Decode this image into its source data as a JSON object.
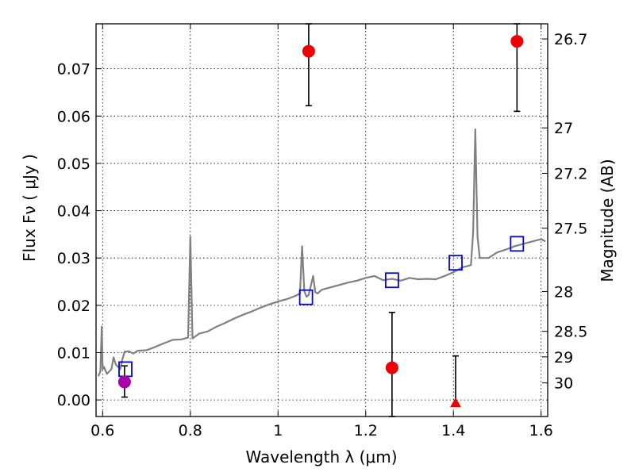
{
  "chart_data": {
    "type": "scatter",
    "xlabel": "Wavelength  λ (μm)",
    "ylabel": "Flux  Fν ( μJy )",
    "y2label": "Magnitude (AB)",
    "xlim": [
      0.585,
      1.615
    ],
    "ylim": [
      -0.0035,
      0.0795
    ],
    "grid": true,
    "x_ticks": [
      {
        "value": 0.6,
        "label": "0.6"
      },
      {
        "value": 0.8,
        "label": "0.8"
      },
      {
        "value": 1.0,
        "label": "1"
      },
      {
        "value": 1.2,
        "label": "1.2"
      },
      {
        "value": 1.4,
        "label": "1.4"
      },
      {
        "value": 1.6,
        "label": "1.6"
      }
    ],
    "y_ticks": [
      {
        "value": 0.0,
        "label": "0.00"
      },
      {
        "value": 0.01,
        "label": "0.01"
      },
      {
        "value": 0.02,
        "label": "0.02"
      },
      {
        "value": 0.03,
        "label": "0.03"
      },
      {
        "value": 0.04,
        "label": "0.04"
      },
      {
        "value": 0.05,
        "label": "0.05"
      },
      {
        "value": 0.06,
        "label": "0.06"
      },
      {
        "value": 0.07,
        "label": "0.07"
      }
    ],
    "y2_ticks": [
      {
        "flux": 0.0763,
        "label": "26.7"
      },
      {
        "flux": 0.0575,
        "label": "27"
      },
      {
        "flux": 0.0479,
        "label": "27.2"
      },
      {
        "flux": 0.0363,
        "label": "27.5"
      },
      {
        "flux": 0.0229,
        "label": "28"
      },
      {
        "flux": 0.0145,
        "label": "28.5"
      },
      {
        "flux": 0.0091,
        "label": "29"
      },
      {
        "flux": 0.0036,
        "label": "30"
      }
    ],
    "model_spectrum": {
      "color": "#808080",
      "x": [
        0.59,
        0.595,
        0.598,
        0.6,
        0.603,
        0.61,
        0.62,
        0.625,
        0.63,
        0.635,
        0.64,
        0.645,
        0.65,
        0.66,
        0.67,
        0.68,
        0.7,
        0.72,
        0.74,
        0.76,
        0.78,
        0.795,
        0.8,
        0.805,
        0.82,
        0.84,
        0.86,
        0.88,
        0.9,
        0.92,
        0.94,
        0.96,
        0.98,
        1.0,
        1.02,
        1.04,
        1.05,
        1.055,
        1.06,
        1.065,
        1.07,
        1.08,
        1.085,
        1.09,
        1.1,
        1.12,
        1.14,
        1.16,
        1.18,
        1.2,
        1.22,
        1.24,
        1.26,
        1.28,
        1.3,
        1.32,
        1.34,
        1.36,
        1.38,
        1.4,
        1.42,
        1.44,
        1.445,
        1.45,
        1.455,
        1.46,
        1.48,
        1.5,
        1.52,
        1.54,
        1.56,
        1.58,
        1.6,
        1.61
      ],
      "y": [
        0.005,
        0.006,
        0.0155,
        0.0065,
        0.007,
        0.0055,
        0.0065,
        0.009,
        0.0075,
        0.007,
        0.0065,
        0.0085,
        0.0102,
        0.0103,
        0.0098,
        0.0104,
        0.0105,
        0.0112,
        0.012,
        0.0127,
        0.0128,
        0.0132,
        0.0345,
        0.013,
        0.014,
        0.0145,
        0.0155,
        0.0163,
        0.0172,
        0.018,
        0.0187,
        0.0195,
        0.0202,
        0.0208,
        0.0213,
        0.022,
        0.0225,
        0.0325,
        0.023,
        0.0218,
        0.0222,
        0.0262,
        0.0228,
        0.0225,
        0.0233,
        0.0238,
        0.0243,
        0.0248,
        0.0252,
        0.0258,
        0.0262,
        0.0253,
        0.0256,
        0.0252,
        0.0258,
        0.0255,
        0.0256,
        0.0255,
        0.0262,
        0.027,
        0.028,
        0.0285,
        0.0355,
        0.0572,
        0.0345,
        0.03,
        0.03,
        0.0312,
        0.0318,
        0.0325,
        0.033,
        0.0335,
        0.034,
        0.0335
      ]
    },
    "series": [
      {
        "marker": "square-open",
        "color": "#0000ee",
        "points": [
          {
            "x": 0.652,
            "y": 0.0065
          },
          {
            "x": 1.064,
            "y": 0.0217
          },
          {
            "x": 1.26,
            "y": 0.0253
          },
          {
            "x": 1.405,
            "y": 0.029
          },
          {
            "x": 1.545,
            "y": 0.033
          }
        ]
      },
      {
        "marker": "circle",
        "color": "#ee0000",
        "points": [
          {
            "x": 1.07,
            "y": 0.0737,
            "ylo": 0.0622,
            "yhi": 0.0795
          },
          {
            "x": 1.26,
            "y": 0.0068,
            "ylo": -0.0035,
            "yhi": 0.0185
          },
          {
            "x": 1.545,
            "y": 0.0758,
            "ylo": 0.061,
            "yhi": 0.0795
          }
        ]
      },
      {
        "marker": "triangle",
        "color": "#ee0000",
        "points": [
          {
            "x": 1.405,
            "y": -0.0007,
            "ylo": -0.0007,
            "yhi": 0.0093
          }
        ]
      },
      {
        "marker": "circle",
        "color": "#aa00aa",
        "points": [
          {
            "x": 0.65,
            "y": 0.0038,
            "ylo": 0.0006,
            "yhi": 0.0072
          }
        ]
      }
    ]
  }
}
